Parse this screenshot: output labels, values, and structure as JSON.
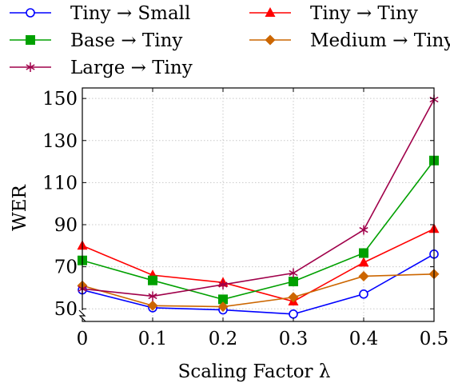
{
  "chart_data": {
    "type": "line",
    "xlabel": "Scaling Factor λ",
    "ylabel": "WER",
    "x": [
      0,
      0.1,
      0.2,
      0.3,
      0.4,
      0.5
    ],
    "x_tick_labels": [
      "0",
      "0.1",
      "0.2",
      "0.3",
      "0.4",
      "0.5"
    ],
    "y_ticks": [
      50,
      70,
      90,
      110,
      130,
      150
    ],
    "y_tick_labels": [
      "50",
      "70",
      "90",
      "110",
      "130",
      "150"
    ],
    "xlim": [
      0,
      0.5
    ],
    "ylim": [
      44,
      155
    ],
    "grid": true,
    "y_axis_break": true,
    "legend_position": "top",
    "series": [
      {
        "name": "Tiny → Small",
        "marker": "circle",
        "color": "#0000ff",
        "values": [
          59,
          50.5,
          49.5,
          47.5,
          57,
          76
        ]
      },
      {
        "name": "Tiny → Tiny",
        "marker": "triangle",
        "color": "#ff0000",
        "values": [
          80,
          66,
          62.5,
          53.5,
          72,
          88
        ]
      },
      {
        "name": "Base → Tiny",
        "marker": "square",
        "color": "#00a000",
        "values": [
          73,
          63.5,
          54.5,
          63,
          76.5,
          120.5
        ]
      },
      {
        "name": "Medium → Tiny",
        "marker": "diamond",
        "color": "#cc6600",
        "values": [
          61,
          51.5,
          51,
          55.5,
          65.5,
          66.5
        ]
      },
      {
        "name": "Large → Tiny",
        "marker": "star",
        "color": "#a0004a",
        "values": [
          59.5,
          56,
          61.5,
          67,
          87.5,
          149.5
        ]
      }
    ]
  }
}
